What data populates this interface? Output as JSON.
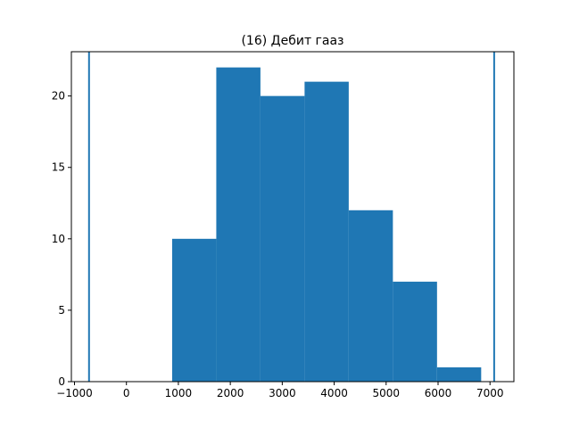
{
  "chart_data": {
    "type": "bar",
    "subtype": "histogram",
    "title": "(16) Дебит гааз",
    "xlabel": "",
    "ylabel": "",
    "bins": [
      {
        "x0": 880,
        "x1": 1730,
        "count": 10
      },
      {
        "x0": 1730,
        "x1": 2580,
        "count": 22
      },
      {
        "x0": 2580,
        "x1": 3430,
        "count": 20
      },
      {
        "x0": 3430,
        "x1": 4280,
        "count": 21
      },
      {
        "x0": 4280,
        "x1": 5130,
        "count": 12
      },
      {
        "x0": 5130,
        "x1": 5980,
        "count": 7
      },
      {
        "x0": 5980,
        "x1": 6830,
        "count": 1
      }
    ],
    "vertical_lines": [
      -720,
      7080
    ],
    "xlim": [
      -1060,
      7460
    ],
    "ylim": [
      0,
      23.1
    ],
    "xticks": [
      -1000,
      0,
      1000,
      2000,
      3000,
      4000,
      5000,
      6000,
      7000
    ],
    "xtick_labels": [
      "−1000",
      "0",
      "1000",
      "2000",
      "3000",
      "4000",
      "5000",
      "6000",
      "7000"
    ],
    "yticks": [
      0,
      5,
      10,
      15,
      20
    ],
    "ytick_labels": [
      "0",
      "5",
      "10",
      "15",
      "20"
    ],
    "grid": false,
    "legend": "none",
    "bar_color": "#1f77b4",
    "line_color": "#1f77b4"
  }
}
